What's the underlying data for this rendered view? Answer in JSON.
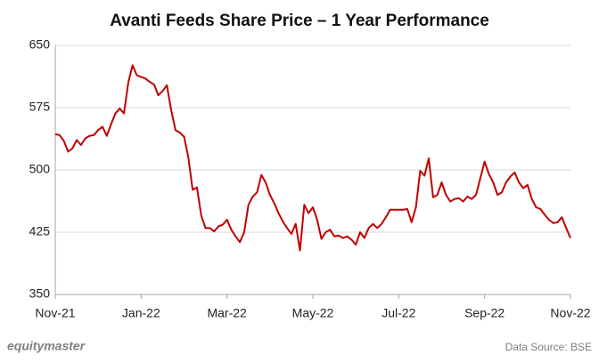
{
  "chart_data": {
    "type": "line",
    "title": "Avanti Feeds Share Price – 1 Year Performance",
    "categories": [
      "Nov-21",
      null,
      null,
      null,
      null,
      null,
      null,
      null,
      null,
      null,
      null,
      null,
      null,
      null,
      null,
      null,
      null,
      null,
      null,
      null,
      "Jan-22",
      null,
      null,
      null,
      null,
      null,
      null,
      null,
      null,
      null,
      null,
      null,
      null,
      null,
      null,
      null,
      null,
      null,
      null,
      null,
      "Mar-22",
      null,
      null,
      null,
      null,
      null,
      null,
      null,
      null,
      null,
      null,
      null,
      null,
      null,
      null,
      null,
      null,
      null,
      null,
      null,
      "May-22",
      null,
      null,
      null,
      null,
      null,
      null,
      null,
      null,
      null,
      null,
      null,
      null,
      null,
      null,
      null,
      null,
      null,
      null,
      null,
      "Jul-22",
      null,
      null,
      null,
      null,
      null,
      null,
      null,
      null,
      null,
      null,
      null,
      null,
      null,
      null,
      null,
      null,
      null,
      null,
      null,
      "Sep-22",
      null,
      null,
      null,
      null,
      null,
      null,
      null,
      null,
      null,
      null,
      null,
      null,
      null,
      null,
      null,
      null,
      null,
      null,
      null,
      "Nov-22"
    ],
    "values": [
      543,
      542,
      535,
      522,
      526,
      536,
      530,
      538,
      541,
      542,
      548,
      552,
      541,
      555,
      568,
      574,
      568,
      605,
      626,
      614,
      612,
      610,
      606,
      603,
      590,
      595,
      602,
      572,
      548,
      545,
      540,
      515,
      476,
      479,
      445,
      430,
      430,
      426,
      432,
      434,
      440,
      428,
      420,
      413,
      425,
      458,
      468,
      473,
      494,
      485,
      470,
      460,
      448,
      438,
      430,
      423,
      435,
      403,
      458,
      448,
      455,
      440,
      417,
      425,
      428,
      420,
      421,
      418,
      420,
      416,
      410,
      425,
      418,
      430,
      435,
      430,
      435,
      443,
      452,
      452,
      452,
      452,
      453,
      437,
      455,
      499,
      493,
      514,
      467,
      470,
      485,
      470,
      462,
      465,
      466,
      462,
      468,
      465,
      470,
      490,
      510,
      495,
      485,
      470,
      473,
      485,
      492,
      497,
      485,
      478,
      482,
      465,
      455,
      453,
      446,
      440,
      436,
      437,
      443,
      430,
      418
    ],
    "color": "#c00000",
    "ylim": [
      350,
      650
    ],
    "yticks": [
      350,
      425,
      500,
      575,
      650
    ],
    "grid": true,
    "logo_text": "equitymaster",
    "source": "Data Source: BSE"
  }
}
